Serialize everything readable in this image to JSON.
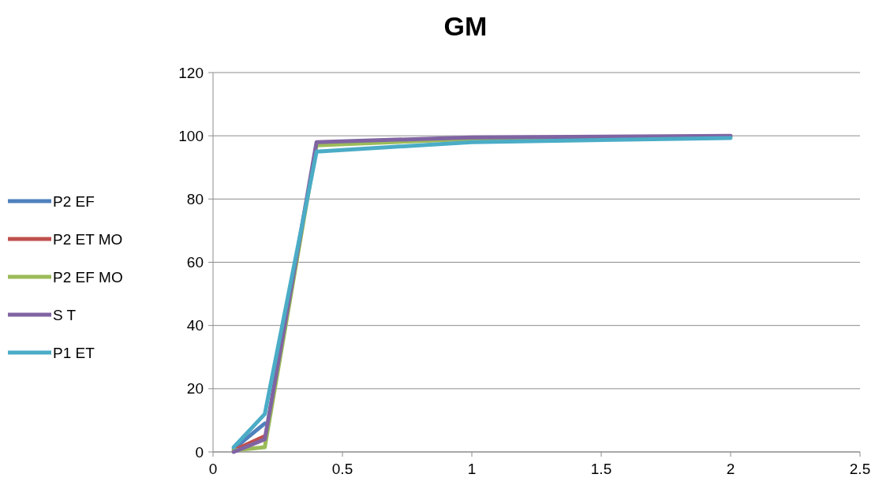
{
  "chart_data": {
    "type": "line",
    "title": "GM",
    "x": [
      0.08,
      0.2,
      0.4,
      1,
      2
    ],
    "series": [
      {
        "name": "P2 EF",
        "color": "#4f81bd",
        "values": [
          1,
          9,
          null,
          null,
          null
        ]
      },
      {
        "name": "P2 ET MO",
        "color": "#c0504d",
        "values": [
          0.5,
          5,
          null,
          null,
          null
        ]
      },
      {
        "name": "P2 EF MO",
        "color": "#9bbb59",
        "values": [
          0.5,
          1.5,
          97,
          99,
          99.7
        ]
      },
      {
        "name": "S T",
        "color": "#8064a2",
        "values": [
          0,
          4,
          98,
          99.5,
          100
        ]
      },
      {
        "name": "P1 ET",
        "color": "#4bacc6",
        "values": [
          1.5,
          12,
          95,
          98,
          99.3
        ]
      }
    ],
    "xlim": [
      0,
      2.5
    ],
    "xticks": [
      0,
      0.5,
      1,
      1.5,
      2,
      2.5
    ],
    "ylim": [
      0,
      120
    ],
    "yticks": [
      0,
      20,
      40,
      60,
      80,
      100,
      120
    ],
    "grid": "y",
    "legend": "left",
    "marker": "none",
    "line_style": "solid"
  }
}
